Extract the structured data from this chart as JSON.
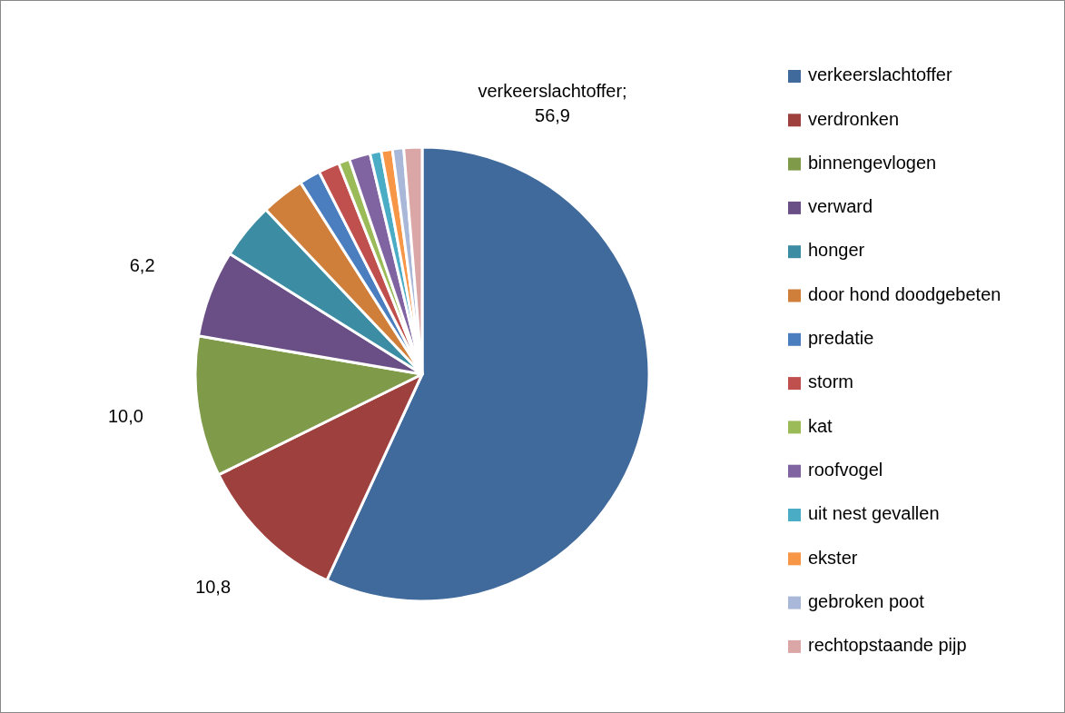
{
  "chart_data": {
    "type": "pie",
    "categories": [
      "verkeerslachtoffer",
      "verdronken",
      "binnengevlogen",
      "verward",
      "honger",
      "door hond doodgebeten",
      "predatie",
      "storm",
      "kat",
      "roofvogel",
      "uit nest gevallen",
      "ekster",
      "gebroken poot",
      "rechtopstaande pijp"
    ],
    "values": [
      56.9,
      10.8,
      10.0,
      6.2,
      4.0,
      3.1,
      1.5,
      1.5,
      0.8,
      1.5,
      0.8,
      0.8,
      0.8,
      1.3
    ],
    "colors": [
      "#416a9c",
      "#9e403d",
      "#7f9a48",
      "#6a4f86",
      "#3c8da3",
      "#cf7f3a",
      "#4a7ebf",
      "#c0504d",
      "#9bbb59",
      "#8064a2",
      "#4bacc6",
      "#f79646",
      "#a9b8d8",
      "#dba7a6"
    ],
    "value_labels": [
      "verkeerslachtoffer;\n56,9",
      "10,8",
      "10,0",
      "6,2",
      null,
      null,
      null,
      null,
      null,
      null,
      null,
      null,
      null,
      null
    ],
    "legend": "right"
  }
}
